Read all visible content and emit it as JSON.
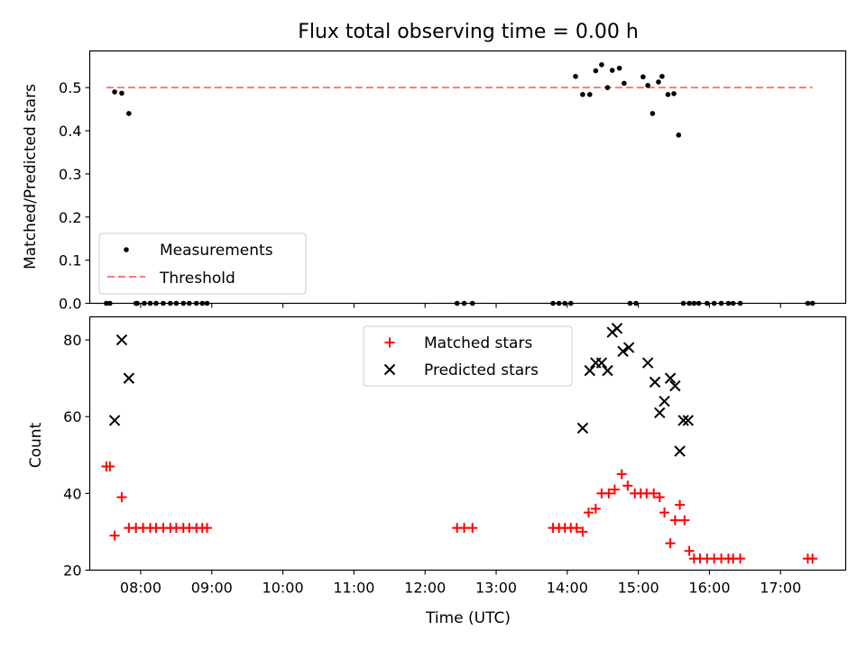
{
  "figure": {
    "title": "Flux total observing time = 0.00 h"
  },
  "chart_data": [
    {
      "type": "scatter",
      "ylabel": "Matched/Predicted stars",
      "xlabel": "",
      "xlim": [
        "07:17",
        "17:55"
      ],
      "ylim": [
        0,
        0.585
      ],
      "yticks": [
        0.0,
        0.1,
        0.2,
        0.3,
        0.4,
        0.5
      ],
      "ytick_labels": [
        "0.0",
        "0.1",
        "0.2",
        "0.3",
        "0.4",
        "0.5"
      ],
      "xticks": [
        "08:00",
        "09:00",
        "10:00",
        "11:00",
        "12:00",
        "13:00",
        "14:00",
        "15:00",
        "16:00",
        "17:00"
      ],
      "grid": false,
      "legend_position": "lower-left",
      "series": [
        {
          "name": "Measurements",
          "style": "dot",
          "color": "#000000",
          "x": [
            "07:31",
            "07:34",
            "07:38",
            "07:44",
            "07:50",
            "07:56",
            "07:57",
            "08:03",
            "08:08",
            "08:13",
            "08:19",
            "08:25",
            "08:30",
            "08:36",
            "08:41",
            "08:47",
            "08:52",
            "08:56",
            "12:27",
            "12:33",
            "12:40",
            "13:48",
            "13:53",
            "13:58",
            "14:03",
            "14:07",
            "14:13",
            "14:19",
            "14:24",
            "14:29",
            "14:34",
            "14:38",
            "14:44",
            "14:48",
            "14:53",
            "14:58",
            "15:04",
            "15:08",
            "15:12",
            "15:17",
            "15:20",
            "15:25",
            "15:30",
            "15:34",
            "15:38",
            "15:43",
            "15:47",
            "15:51",
            "15:58",
            "16:04",
            "16:10",
            "16:16",
            "16:20",
            "16:26",
            "17:23",
            "17:27"
          ],
          "y": [
            0.0,
            0.0,
            0.49,
            0.487,
            0.44,
            0.0,
            0.0,
            0.0,
            0.0,
            0.0,
            0.0,
            0.0,
            0.0,
            0.0,
            0.0,
            0.0,
            0.0,
            0.0,
            0.0,
            0.0,
            0.0,
            0.0,
            0.0,
            0.0,
            0.0,
            0.526,
            0.484,
            0.484,
            0.539,
            0.553,
            0.5,
            0.54,
            0.545,
            0.51,
            0.0,
            0.0,
            0.525,
            0.505,
            0.44,
            0.513,
            0.526,
            0.484,
            0.486,
            0.39,
            0.0,
            0.0,
            0.0,
            0.0,
            0.0,
            0.0,
            0.0,
            0.0,
            0.0,
            0.0,
            0.0,
            0.0
          ]
        },
        {
          "name": "Threshold",
          "style": "dashed-line",
          "color": "#ff7777",
          "x": [
            "07:31",
            "17:27"
          ],
          "y": [
            0.5,
            0.5
          ]
        }
      ]
    },
    {
      "type": "scatter",
      "ylabel": "Count",
      "xlabel": "Time (UTC)",
      "xlim": [
        "07:17",
        "17:55"
      ],
      "ylim": [
        20,
        86
      ],
      "yticks": [
        20,
        40,
        60,
        80
      ],
      "ytick_labels": [
        "20",
        "40",
        "60",
        "80"
      ],
      "xticks": [
        "08:00",
        "09:00",
        "10:00",
        "11:00",
        "12:00",
        "13:00",
        "14:00",
        "15:00",
        "16:00",
        "17:00"
      ],
      "grid": false,
      "legend_position": "upper-center",
      "series": [
        {
          "name": "Matched stars",
          "marker": "+",
          "color": "#ff0000",
          "x": [
            "07:31",
            "07:34",
            "07:38",
            "07:44",
            "07:50",
            "07:56",
            "08:02",
            "08:08",
            "08:13",
            "08:19",
            "08:25",
            "08:30",
            "08:36",
            "08:41",
            "08:47",
            "08:52",
            "08:56",
            "12:27",
            "12:33",
            "12:40",
            "13:48",
            "13:53",
            "13:58",
            "14:03",
            "14:08",
            "14:13",
            "14:18",
            "14:24",
            "14:29",
            "14:35",
            "14:40",
            "14:46",
            "14:51",
            "14:57",
            "15:02",
            "15:07",
            "15:13",
            "15:18",
            "15:22",
            "15:27",
            "15:31",
            "15:35",
            "15:39",
            "15:43",
            "15:47",
            "15:52",
            "15:58",
            "16:04",
            "16:10",
            "16:16",
            "16:20",
            "16:26",
            "17:23",
            "17:27"
          ],
          "y": [
            47,
            47,
            29,
            39,
            31,
            31,
            31,
            31,
            31,
            31,
            31,
            31,
            31,
            31,
            31,
            31,
            31,
            31,
            31,
            31,
            31,
            31,
            31,
            31,
            31,
            30,
            35,
            36,
            40,
            40,
            41,
            45,
            42,
            40,
            40,
            40,
            40,
            39,
            35,
            27,
            33,
            37,
            33,
            25,
            23,
            23,
            23,
            23,
            23,
            23,
            23,
            23,
            23,
            23
          ]
        },
        {
          "name": "Predicted stars",
          "marker": "x",
          "color": "#000000",
          "x": [
            "07:38",
            "07:44",
            "07:50",
            "14:13",
            "14:19",
            "14:24",
            "14:29",
            "14:34",
            "14:38",
            "14:42",
            "14:47",
            "14:52",
            "15:08",
            "15:14",
            "15:18",
            "15:22",
            "15:27",
            "15:31",
            "15:35",
            "15:38",
            "15:42"
          ],
          "y": [
            59,
            80,
            70,
            57,
            72,
            74,
            74,
            72,
            82,
            83,
            77,
            78,
            74,
            69,
            61,
            64,
            70,
            68,
            51,
            59,
            59
          ]
        }
      ]
    }
  ]
}
